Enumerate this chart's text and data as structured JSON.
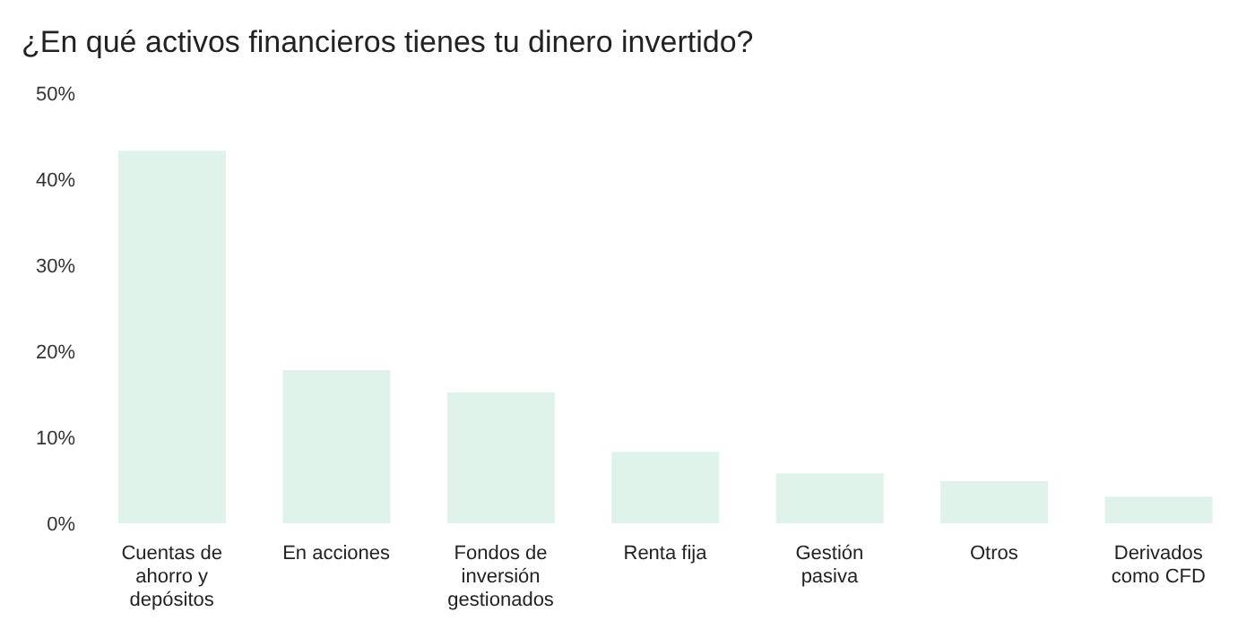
{
  "chart_data": {
    "type": "bar",
    "title": "¿En qué activos financieros tienes tu dinero invertido?",
    "categories": [
      "Cuentas de ahorro y depósitos",
      "En acciones",
      "Fondos de inversión gestionados",
      "Renta fija",
      "Gestión pasiva",
      "Otros",
      "Derivados como CFD"
    ],
    "values": [
      43.3,
      17.8,
      15.2,
      8.3,
      5.8,
      4.9,
      3.1
    ],
    "color": "#dff3ea",
    "ylim": [
      0,
      50
    ],
    "yticks": [
      {
        "value": 0,
        "label": "0%"
      },
      {
        "value": 10,
        "label": "10%"
      },
      {
        "value": 20,
        "label": "20%"
      },
      {
        "value": 30,
        "label": "30%"
      },
      {
        "value": 40,
        "label": "40%"
      },
      {
        "value": 50,
        "label": "50%"
      }
    ],
    "grid": false,
    "legend": false
  }
}
